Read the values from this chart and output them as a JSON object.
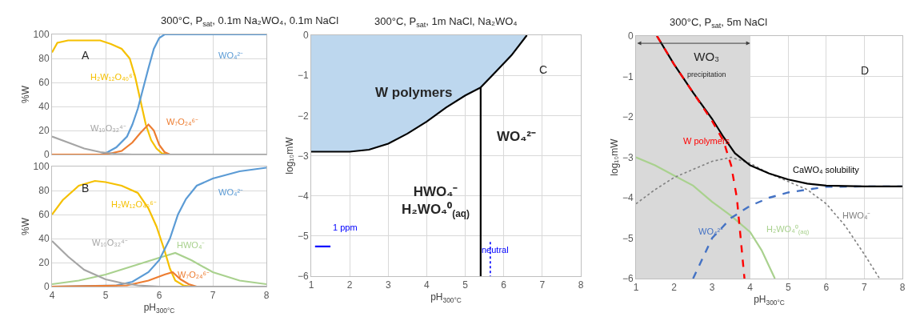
{
  "chart_data": [
    {
      "type": "line",
      "title": "300°C, P$_{sat}$, 0.1m Na₂WO₄, 0.1m NaCl",
      "ylabel": "%W",
      "xlim": [
        4,
        8
      ],
      "ylim": [
        0,
        100
      ],
      "xticks": [
        4,
        5,
        6,
        7,
        8
      ],
      "yticks": [
        0,
        20,
        40,
        60,
        80,
        100
      ],
      "grid": true,
      "tick_labels": "y",
      "series": [
        {
          "name": "H₂W₁₂O₄₀⁶⁻",
          "color": "#f5c000",
          "x": [
            4,
            4.1,
            4.3,
            4.5,
            4.9,
            5.1,
            5.3,
            5.45,
            5.55,
            5.65,
            5.75,
            5.85,
            5.95,
            6.05,
            6.2,
            8
          ],
          "values": [
            85,
            93,
            95,
            95,
            95,
            92,
            88,
            80,
            65,
            45,
            25,
            12,
            5,
            1,
            0,
            0
          ]
        },
        {
          "name": "WO₄²⁻",
          "color": "#5b9bd5",
          "x": [
            4,
            4.9,
            5.0,
            5.2,
            5.4,
            5.5,
            5.6,
            5.7,
            5.8,
            5.9,
            6.0,
            6.1,
            8
          ],
          "values": [
            0,
            0,
            1,
            6,
            15,
            25,
            38,
            55,
            72,
            88,
            97,
            100,
            100
          ]
        },
        {
          "name": "W₇O₂₄⁶⁻",
          "color": "#ed7d31",
          "x": [
            4,
            5.0,
            5.3,
            5.5,
            5.65,
            5.8,
            5.9,
            6.0,
            6.1,
            6.2,
            8
          ],
          "values": [
            0,
            0,
            3,
            10,
            18,
            25,
            20,
            8,
            2,
            0,
            0
          ]
        },
        {
          "name": "W₁₀O₃₂⁴⁻",
          "color": "#a5a5a5",
          "x": [
            4,
            4.3,
            4.6,
            4.9,
            5.2,
            5.5,
            8
          ],
          "values": [
            15,
            10,
            5,
            2,
            0.5,
            0,
            0
          ]
        }
      ],
      "annotations": [
        "A"
      ]
    },
    {
      "type": "line",
      "xlabel": "pH$_{300°C}$",
      "ylabel": "%W",
      "xlim": [
        4,
        8
      ],
      "ylim": [
        0,
        100
      ],
      "xticks": [
        4,
        5,
        6,
        7,
        8
      ],
      "yticks": [
        0,
        20,
        40,
        60,
        80,
        100
      ],
      "grid": true,
      "series": [
        {
          "name": "HWO₄⁻",
          "color": "#a9d18e",
          "x": [
            4,
            4.5,
            5.0,
            5.5,
            6.0,
            6.3,
            6.6,
            7.0,
            7.5,
            8
          ],
          "values": [
            2,
            5,
            10,
            17,
            24,
            28,
            22,
            12,
            5,
            2
          ]
        },
        {
          "name": "H₂W₁₂O₄₀⁶⁻",
          "color": "#f5c000",
          "x": [
            4,
            4.2,
            4.5,
            4.8,
            5.0,
            5.3,
            5.6,
            5.8,
            5.95,
            6.1,
            6.2,
            6.3,
            6.45,
            6.6,
            8
          ],
          "values": [
            60,
            72,
            84,
            88,
            87,
            84,
            78,
            65,
            50,
            30,
            15,
            5,
            1,
            0,
            0
          ]
        },
        {
          "name": "WO₄²⁻",
          "color": "#5b9bd5",
          "x": [
            4,
            5.2,
            5.5,
            5.8,
            6.0,
            6.2,
            6.35,
            6.5,
            6.7,
            7.0,
            7.5,
            8
          ],
          "values": [
            0,
            1,
            4,
            12,
            22,
            40,
            60,
            73,
            84,
            90,
            96,
            99
          ]
        },
        {
          "name": "W₇O₂₄⁶⁻",
          "color": "#ed7d31",
          "x": [
            4,
            5.4,
            5.8,
            6.1,
            6.25,
            6.4,
            6.55,
            6.7,
            8
          ],
          "values": [
            0,
            1,
            5,
            10,
            12,
            6,
            2,
            0,
            0
          ]
        },
        {
          "name": "W₁₀O₃₂⁴⁻",
          "color": "#a5a5a5",
          "x": [
            4,
            4.3,
            4.6,
            5.0,
            5.3,
            5.6,
            6,
            8
          ],
          "values": [
            38,
            25,
            14,
            6,
            3,
            1,
            0,
            0
          ]
        }
      ],
      "annotations": [
        "B"
      ]
    },
    {
      "type": "line",
      "title": "300°C, P$_{sat}$, 1m NaCl, Na₂WO₄",
      "xlabel": "pH$_{300°C}$",
      "ylabel": "log₁₀mW",
      "xlim": [
        1,
        8
      ],
      "ylim": [
        -6,
        0
      ],
      "xticks": [
        1,
        2,
        3,
        4,
        5,
        6,
        7,
        8
      ],
      "yticks": [
        -6,
        -5,
        -4,
        -3,
        -2,
        -1,
        0
      ],
      "grid": true,
      "series": [
        {
          "type": "area",
          "color": "#bdd7ee",
          "x": [
            1,
            2,
            2.5,
            3,
            3.5,
            4,
            4.5,
            5,
            5.4,
            5.8,
            6.2,
            6.6
          ],
          "values": [
            -2.9,
            -2.9,
            -2.85,
            -2.7,
            -2.45,
            -2.15,
            -1.8,
            -1.5,
            -1.3,
            -0.9,
            -0.5,
            0
          ]
        },
        {
          "color": "#000000",
          "x": [
            1,
            2,
            2.5,
            3,
            3.5,
            4,
            4.5,
            5,
            5.4,
            5.4,
            5.4,
            5.8,
            6.2,
            6.6
          ],
          "values": [
            -2.9,
            -2.9,
            -2.85,
            -2.7,
            -2.45,
            -2.15,
            -1.8,
            -1.5,
            -1.3,
            -6,
            -1.3,
            -0.9,
            -0.5,
            0
          ]
        },
        {
          "name": "neutral",
          "color": "#0000ff",
          "x": [
            5.65,
            5.65
          ],
          "values": [
            -5.15,
            -6
          ],
          "line_style": "dotted"
        },
        {
          "name": "1 ppm",
          "color": "#0000ff",
          "x": [
            1.1,
            1.5
          ],
          "values": [
            -5.26,
            -5.26
          ]
        }
      ],
      "annotations": [
        "C",
        "W polymers",
        "WO₄²⁻",
        "HWO₄⁻\nH₂WO₄⁰$_{(aq)}$"
      ]
    },
    {
      "type": "line",
      "title": "300°C, P$_{sat}$, 5m NaCl",
      "xlabel": "pH$_{300°C}$",
      "ylabel": "log₁₀mW",
      "xlim": [
        1,
        8
      ],
      "ylim": [
        -6,
        0
      ],
      "xticks": [
        1,
        2,
        3,
        4,
        5,
        6,
        7,
        8
      ],
      "yticks": [
        -6,
        -5,
        -4,
        -3,
        -2,
        -1,
        0
      ],
      "grid": true,
      "bands": [
        {
          "axis": "x",
          "from": 1,
          "to": 4,
          "label": "WO₃\nprecipitation",
          "color": "#d9d9d9"
        }
      ],
      "series": [
        {
          "name": "H₂WO₄⁰$_{(aq)}$",
          "color": "#a9d18e",
          "x": [
            1,
            1.5,
            2,
            2.5,
            3,
            3.5,
            4,
            4.3,
            4.6,
            4.65
          ],
          "values": [
            -3,
            -3.2,
            -3.45,
            -3.7,
            -4.1,
            -4.45,
            -4.85,
            -5.3,
            -5.9,
            -6
          ]
        },
        {
          "name": "HWO₄⁻",
          "color": "#808080",
          "x": [
            1,
            1.5,
            2,
            2.5,
            3,
            3.5,
            4,
            4.5,
            5,
            5.5,
            6,
            6.5,
            7,
            7.4
          ],
          "values": [
            -4.15,
            -3.8,
            -3.5,
            -3.3,
            -3.1,
            -3.0,
            -3.15,
            -3.4,
            -3.6,
            -3.8,
            -4.15,
            -4.7,
            -5.4,
            -6
          ],
          "line_style": "dotted"
        },
        {
          "name": "WO₄²⁻",
          "color": "#4472c4",
          "x": [
            2.5,
            3,
            3.5,
            4,
            4.5,
            5,
            6,
            7,
            8
          ],
          "values": [
            -6,
            -5,
            -4.5,
            -4.2,
            -4.0,
            -3.87,
            -3.73,
            -3.72,
            -3.72
          ],
          "line_style": "dashed"
        },
        {
          "name": "CaWO₄ solubility",
          "color": "#000000",
          "x": [
            1.55,
            2,
            2.5,
            3,
            3.3,
            3.6,
            4,
            4.5,
            5,
            5.5,
            6,
            7,
            8
          ],
          "values": [
            0,
            -0.7,
            -1.4,
            -2.05,
            -2.5,
            -2.9,
            -3.2,
            -3.4,
            -3.55,
            -3.65,
            -3.7,
            -3.72,
            -3.72
          ]
        },
        {
          "name": "W polymers",
          "color": "#ff0000",
          "x": [
            1.55,
            2,
            2.5,
            3,
            3.3,
            3.5,
            3.65,
            3.75,
            3.85
          ],
          "values": [
            0,
            -0.7,
            -1.4,
            -2.1,
            -2.6,
            -3.2,
            -4,
            -5,
            -6
          ],
          "line_style": "dashed"
        }
      ],
      "annotations": [
        "D"
      ]
    }
  ]
}
